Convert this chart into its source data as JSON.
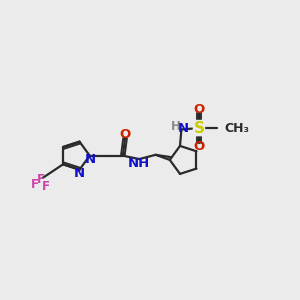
{
  "background_color": "#ebebeb",
  "bond_color": "#2a2a2a",
  "bond_width": 1.6,
  "figsize": [
    3.0,
    3.0
  ],
  "dpi": 100,
  "xlim": [
    0.3,
    10.7
  ],
  "ylim": [
    2.5,
    8.0
  ]
}
